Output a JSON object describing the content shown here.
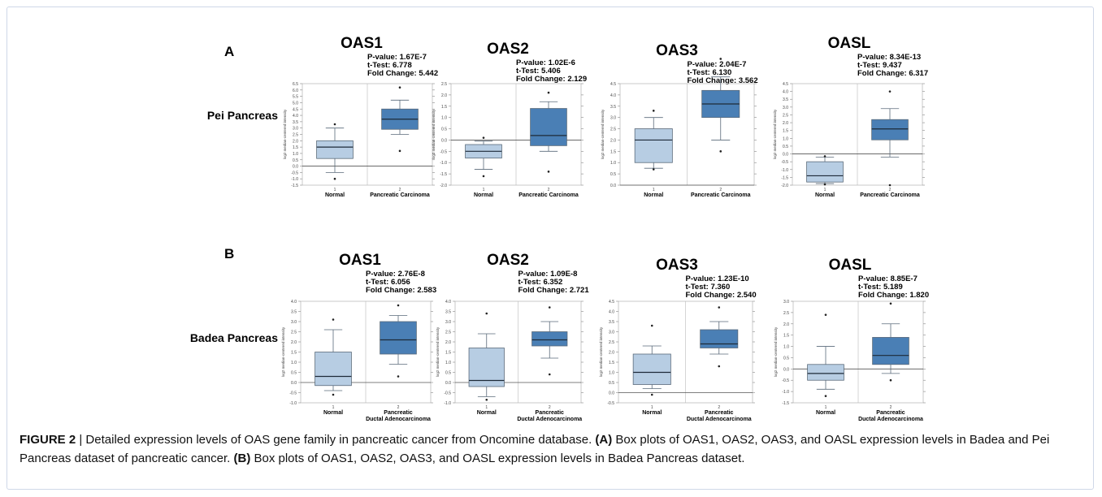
{
  "panels": [
    {
      "letter": "A",
      "dataset": "Pei Pancreas"
    },
    {
      "letter": "B",
      "dataset": "Badea Pancreas"
    }
  ],
  "caption": {
    "figure": "FIGURE 2",
    "sep": " | ",
    "t1": "Detailed expression levels of OAS gene family in pancreatic cancer from Oncomine database. ",
    "la": "(A)",
    "t2": " Box plots of OAS1, OAS2, OAS3, and OASL expression levels in Badea and Pei Pancreas dataset of pancreatic cancer. ",
    "lb": "(B)",
    "t3": " Box plots of OAS1, OAS2, OAS3, and OASL expression levels in Badea Pancreas dataset."
  },
  "colors": {
    "normal": "#b7cde3",
    "cancer": "#4a7fb5",
    "outline": "#5a6a7a",
    "frame": "#bbbbbb",
    "caption_border": "#cfd8e8"
  },
  "chart_data": [
    {
      "type": "box",
      "title": "OAS1",
      "panel": "A",
      "stats": [
        "P-value: 1.67E-7",
        "t-Test: 6.778",
        "Fold Change: 5.442"
      ],
      "ylabel": "log2 median-centered intensity",
      "ylim": [
        -1.5,
        6.5
      ],
      "yticks": [
        -1.5,
        -1.0,
        -0.5,
        0.0,
        0.5,
        1.0,
        1.5,
        2.0,
        2.5,
        3.0,
        3.5,
        4.0,
        4.5,
        5.0,
        5.5,
        6.0,
        6.5
      ],
      "categories": [
        "Normal",
        "Pancreatic Carcinoma"
      ],
      "tick_numbers": [
        "1",
        "2"
      ],
      "groups": [
        {
          "min": -0.5,
          "q1": 0.6,
          "median": 1.5,
          "q3": 2.0,
          "max": 3.0,
          "outliers": [
            3.3,
            -1.0
          ]
        },
        {
          "min": 2.5,
          "q1": 2.9,
          "median": 3.7,
          "q3": 4.5,
          "max": 5.2,
          "outliers": [
            6.2,
            1.2
          ]
        }
      ]
    },
    {
      "type": "box",
      "title": "OAS2",
      "panel": "A",
      "stats": [
        "P-value: 1.02E-6",
        "t-Test: 5.406",
        "Fold Change: 2.129"
      ],
      "ylabel": "log2 median-centered intensity",
      "ylim": [
        -2.0,
        2.5
      ],
      "yticks": [
        -2.0,
        -1.5,
        -1.0,
        -0.5,
        0.0,
        0.5,
        1.0,
        1.5,
        2.0,
        2.5
      ],
      "categories": [
        "Normal",
        "Pancreatic Carcinoma"
      ],
      "tick_numbers": [
        "1",
        "2"
      ],
      "groups": [
        {
          "min": -1.3,
          "q1": -0.8,
          "median": -0.5,
          "q3": -0.2,
          "max": -0.05,
          "outliers": [
            0.1,
            -1.6
          ]
        },
        {
          "min": -0.5,
          "q1": -0.25,
          "median": 0.2,
          "q3": 1.4,
          "max": 1.7,
          "outliers": [
            2.1,
            -1.4
          ]
        }
      ]
    },
    {
      "type": "box",
      "title": "OAS3",
      "panel": "A",
      "stats": [
        "P-value: 2.04E-7",
        "t-Test: 6.130",
        "Fold Change: 3.562"
      ],
      "ylabel": "log2 median-centered intensity",
      "ylim": [
        0.0,
        4.5
      ],
      "yticks": [
        0.0,
        0.5,
        1.0,
        1.5,
        2.0,
        2.5,
        3.0,
        3.5,
        4.0,
        4.5
      ],
      "categories": [
        "Normal",
        "Pancreatic Carcinoma"
      ],
      "tick_numbers": [
        "1",
        "2"
      ],
      "groups": [
        {
          "min": 0.75,
          "q1": 1.0,
          "median": 2.0,
          "q3": 2.5,
          "max": 3.0,
          "outliers": [
            3.3,
            0.7
          ]
        },
        {
          "min": 2.0,
          "q1": 3.0,
          "median": 3.6,
          "q3": 4.2,
          "max": 4.8,
          "outliers": [
            5.6,
            1.5
          ]
        }
      ]
    },
    {
      "type": "box",
      "title": "OASL",
      "panel": "A",
      "stats": [
        "P-value: 8.34E-13",
        "t-Test: 9.437",
        "Fold Change: 6.317"
      ],
      "ylabel": "log2 median-centered intensity",
      "ylim": [
        -2.0,
        4.5
      ],
      "yticks": [
        -2.0,
        -1.5,
        -1.0,
        -0.5,
        0.0,
        0.5,
        1.0,
        1.5,
        2.0,
        2.5,
        3.0,
        3.5,
        4.0,
        4.5
      ],
      "categories": [
        "Normal",
        "Pancreatic Carcinoma"
      ],
      "tick_numbers": [
        "1",
        "2"
      ],
      "groups": [
        {
          "min": -1.9,
          "q1": -1.8,
          "median": -1.4,
          "q3": -0.5,
          "max": -0.2,
          "outliers": [
            -0.15,
            -1.95
          ]
        },
        {
          "min": -0.2,
          "q1": 0.9,
          "median": 1.6,
          "q3": 2.2,
          "max": 2.9,
          "outliers": [
            4.0,
            -2.0
          ]
        }
      ]
    },
    {
      "type": "box",
      "title": "OAS1",
      "panel": "B",
      "stats": [
        "P-value: 2.76E-8",
        "t-Test: 6.056",
        "Fold Change: 2.583"
      ],
      "ylabel": "log2 median-centered intensity",
      "ylim": [
        -1.0,
        4.0
      ],
      "yticks": [
        -1.0,
        -0.5,
        0.0,
        0.5,
        1.0,
        1.5,
        2.0,
        2.5,
        3.0,
        3.5,
        4.0
      ],
      "categories": [
        "Normal",
        "Pancreatic\nDuctal Adenocarcinoma"
      ],
      "tick_numbers": [
        "1",
        "2"
      ],
      "groups": [
        {
          "min": -0.4,
          "q1": -0.15,
          "median": 0.3,
          "q3": 1.5,
          "max": 2.6,
          "outliers": [
            3.1,
            -0.6
          ]
        },
        {
          "min": 0.9,
          "q1": 1.4,
          "median": 2.1,
          "q3": 3.0,
          "max": 3.3,
          "outliers": [
            3.8,
            0.3
          ]
        }
      ]
    },
    {
      "type": "box",
      "title": "OAS2",
      "panel": "B",
      "stats": [
        "P-value: 1.09E-8",
        "t-Test: 6.352",
        "Fold Change: 2.721"
      ],
      "ylabel": "log2 median-centered intensity",
      "ylim": [
        -1.0,
        4.0
      ],
      "yticks": [
        -1.0,
        -0.5,
        0.0,
        0.5,
        1.0,
        1.5,
        2.0,
        2.5,
        3.0,
        3.5,
        4.0
      ],
      "categories": [
        "Normal",
        "Pancreatic\nDuctal Adenocarcinoma"
      ],
      "tick_numbers": [
        "1",
        "2"
      ],
      "groups": [
        {
          "min": -0.7,
          "q1": -0.2,
          "median": 0.1,
          "q3": 1.7,
          "max": 2.4,
          "outliers": [
            3.4,
            -0.85
          ]
        },
        {
          "min": 1.2,
          "q1": 1.8,
          "median": 2.1,
          "q3": 2.5,
          "max": 3.0,
          "outliers": [
            3.7,
            0.4
          ]
        }
      ]
    },
    {
      "type": "box",
      "title": "OAS3",
      "panel": "B",
      "stats": [
        "P-value: 1.23E-10",
        "t-Test: 7.360",
        "Fold Change: 2.540"
      ],
      "ylabel": "log2 median-centered intensity",
      "ylim": [
        -0.5,
        4.5
      ],
      "yticks": [
        -0.5,
        0.0,
        0.5,
        1.0,
        1.5,
        2.0,
        2.5,
        3.0,
        3.5,
        4.0,
        4.5
      ],
      "categories": [
        "Normal",
        "Pancreatic\nDuctal Adenocarcinoma"
      ],
      "tick_numbers": [
        "1",
        "2"
      ],
      "groups": [
        {
          "min": 0.2,
          "q1": 0.4,
          "median": 1.0,
          "q3": 1.9,
          "max": 2.3,
          "outliers": [
            3.3,
            -0.1
          ]
        },
        {
          "min": 1.9,
          "q1": 2.2,
          "median": 2.4,
          "q3": 3.1,
          "max": 3.5,
          "outliers": [
            4.2,
            1.3
          ]
        }
      ]
    },
    {
      "type": "box",
      "title": "OASL",
      "panel": "B",
      "stats": [
        "P-value: 8.85E-7",
        "t-Test: 5.189",
        "Fold Change: 1.820"
      ],
      "ylabel": "log2 median-centered intensity",
      "ylim": [
        -1.5,
        3.0
      ],
      "yticks": [
        -1.5,
        -1.0,
        -0.5,
        0.0,
        0.5,
        1.0,
        1.5,
        2.0,
        2.5,
        3.0
      ],
      "categories": [
        "Normal",
        "Pancreatic\nDuctal Adenocarcinoma"
      ],
      "tick_numbers": [
        "1",
        "2"
      ],
      "groups": [
        {
          "min": -0.9,
          "q1": -0.5,
          "median": -0.2,
          "q3": 0.2,
          "max": 1.0,
          "outliers": [
            2.4,
            -1.2
          ]
        },
        {
          "min": -0.2,
          "q1": 0.2,
          "median": 0.6,
          "q3": 1.4,
          "max": 2.0,
          "outliers": [
            2.9,
            -0.5
          ]
        }
      ]
    }
  ]
}
